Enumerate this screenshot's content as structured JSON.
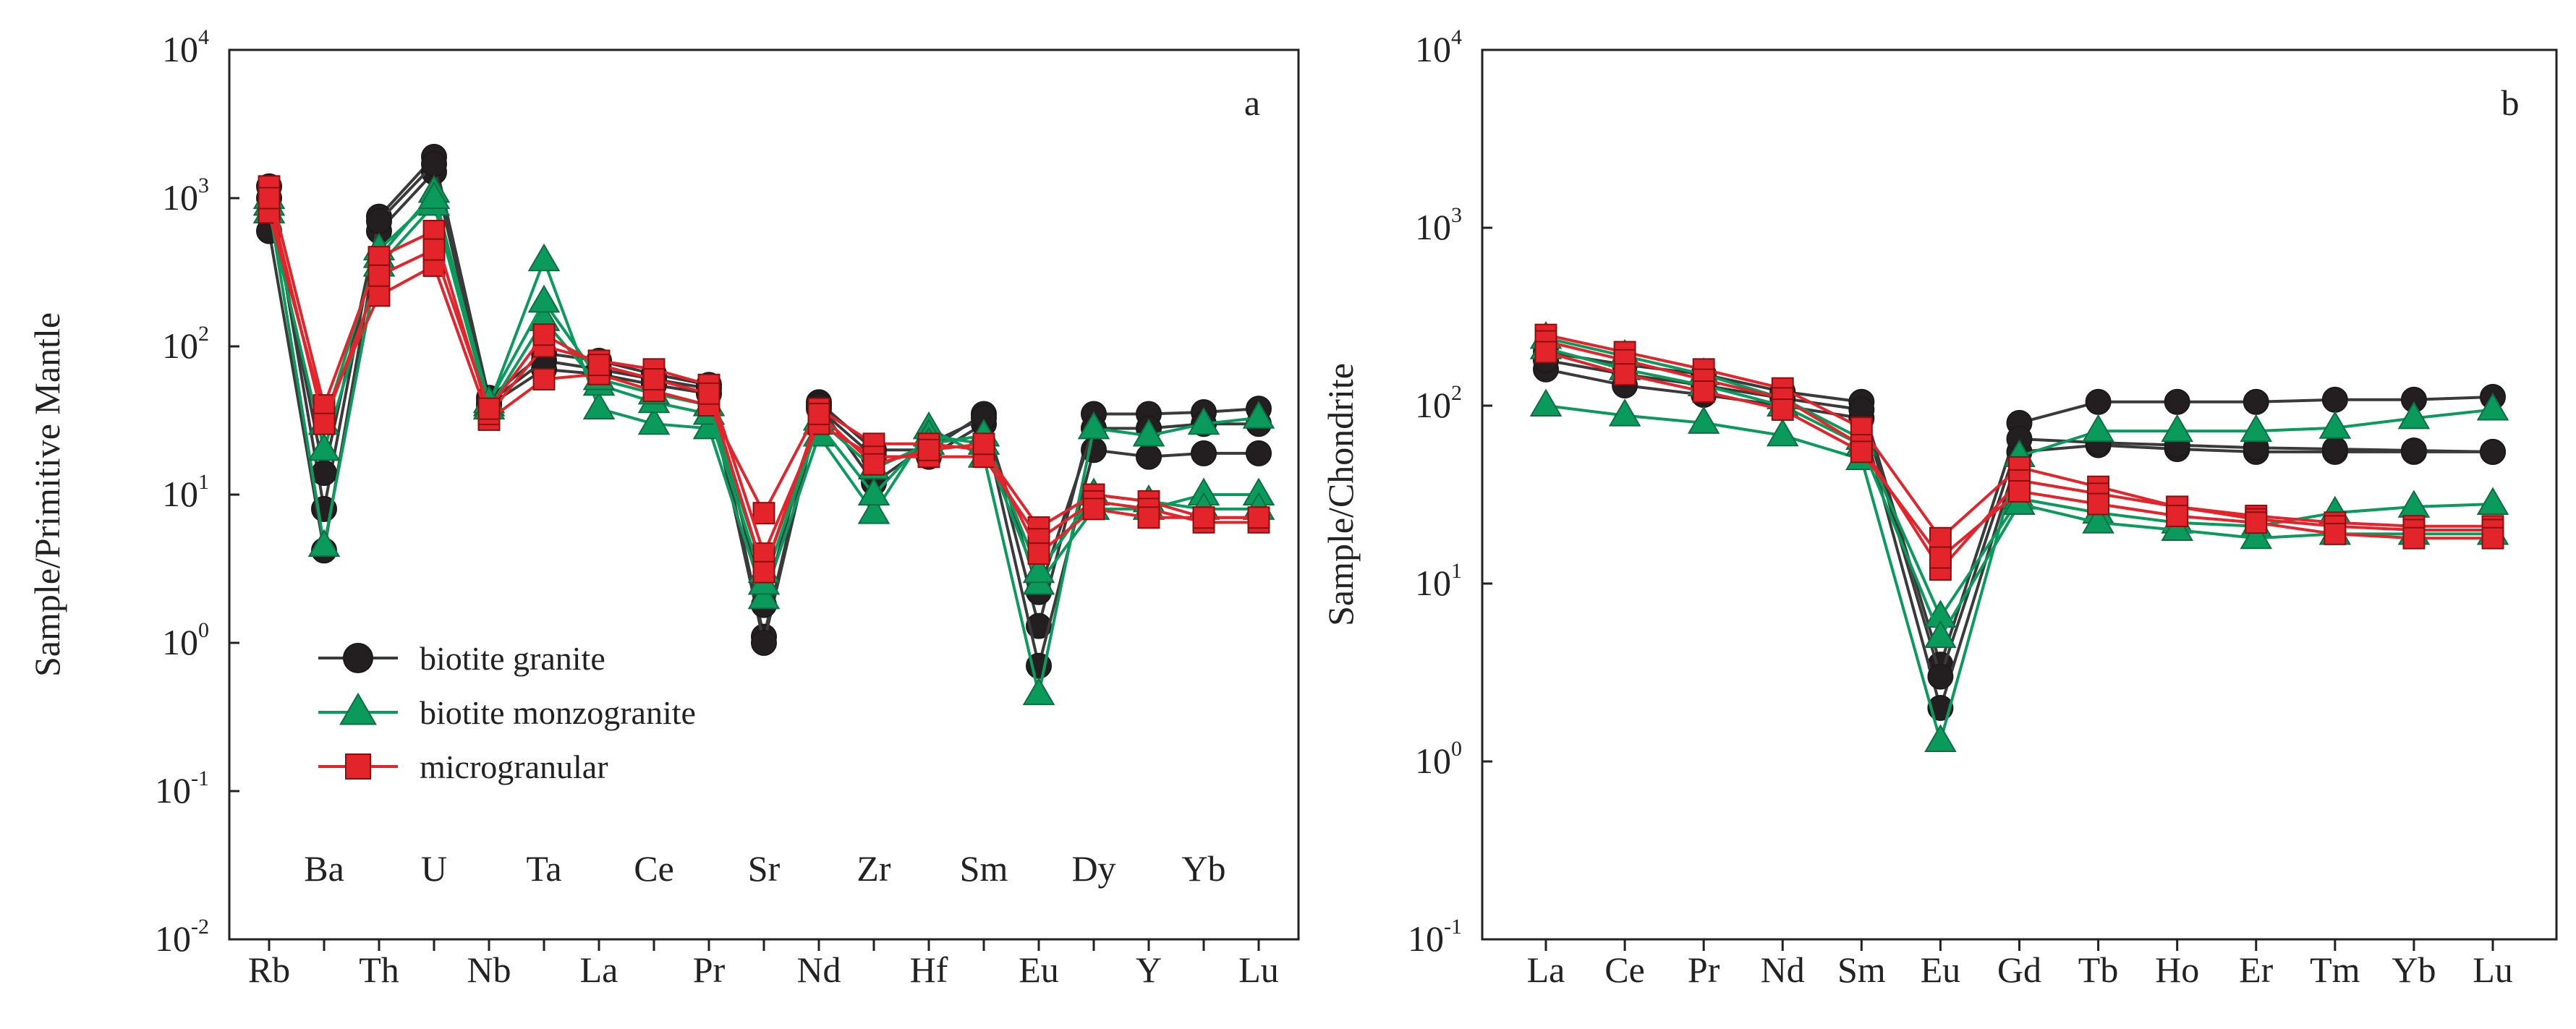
{
  "chart_data": [
    {
      "type": "line",
      "panel_label": "a",
      "ylabel": "Sample/Primitive Mantle",
      "yscale": "log",
      "ylim": [
        0.01,
        10000
      ],
      "y_tick_labels": [
        {
          "base": "10",
          "exp": "-2",
          "value": 0.01
        },
        {
          "base": "10",
          "exp": "-1",
          "value": 0.1
        },
        {
          "base": "10",
          "exp": "0",
          "value": 1
        },
        {
          "base": "10",
          "exp": "1",
          "value": 10
        },
        {
          "base": "10",
          "exp": "2",
          "value": 100
        },
        {
          "base": "10",
          "exp": "3",
          "value": 1000
        },
        {
          "base": "10",
          "exp": "4",
          "value": 10000
        }
      ],
      "categories": [
        "Rb",
        "Ba",
        "Th",
        "U",
        "Nb",
        "Ta",
        "La",
        "Ce",
        "Pr",
        "Sr",
        "Nd",
        "Zr",
        "Hf",
        "Sm",
        "Eu",
        "Dy",
        "Y",
        "Yb",
        "Lu"
      ],
      "category_rows": [
        "bottom",
        "top",
        "bottom",
        "top",
        "bottom",
        "top",
        "bottom",
        "top",
        "bottom",
        "top",
        "bottom",
        "top",
        "bottom",
        "top",
        "bottom",
        "top",
        "bottom",
        "top",
        "bottom"
      ],
      "legend": {
        "position": "lower-left",
        "entries": [
          {
            "label": "biotite granite",
            "marker": "circle",
            "color": "#231f20"
          },
          {
            "label": "biotite monzogranite",
            "marker": "triangle",
            "color": "#0a9a5c"
          },
          {
            "label": "microgranular",
            "marker": "square",
            "color": "#e3242b"
          }
        ]
      },
      "series": [
        {
          "name": "biotite granite",
          "marker": "circle",
          "color": "#231f20",
          "values": [
            1200,
            8,
            750,
            1900,
            45,
            90,
            80,
            65,
            55,
            1.1,
            42,
            20,
            20,
            35,
            1.3,
            35,
            35,
            36,
            38
          ]
        },
        {
          "name": "biotite granite",
          "marker": "circle",
          "color": "#231f20",
          "values": [
            600,
            4.2,
            600,
            1500,
            40,
            70,
            65,
            55,
            48,
            1.0,
            38,
            18,
            18,
            30,
            0.7,
            20,
            18,
            19,
            19
          ]
        },
        {
          "name": "biotite granite",
          "marker": "circle",
          "color": "#231f20",
          "values": [
            1000,
            14,
            700,
            1700,
            42,
            80,
            70,
            60,
            52,
            1.8,
            40,
            12,
            22,
            33,
            2.2,
            28,
            28,
            30,
            30
          ]
        },
        {
          "name": "biotite monzogranite",
          "marker": "triangle",
          "color": "#0a9a5c",
          "values": [
            900,
            4.5,
            400,
            1100,
            40,
            380,
            38,
            30,
            28,
            2.0,
            25,
            7.5,
            28,
            18,
            0.45,
            28,
            25,
            30,
            33
          ]
        },
        {
          "name": "biotite monzogranite",
          "marker": "triangle",
          "color": "#0a9a5c",
          "values": [
            800,
            20,
            350,
            900,
            38,
            150,
            55,
            42,
            35,
            2.5,
            30,
            10,
            25,
            22,
            2.5,
            8,
            8,
            10,
            10
          ]
        },
        {
          "name": "biotite monzogranite",
          "marker": "triangle",
          "color": "#0a9a5c",
          "values": [
            1000,
            30,
            450,
            1000,
            42,
            200,
            60,
            48,
            40,
            3.0,
            32,
            15,
            22,
            25,
            3.0,
            10,
            9,
            8,
            8
          ]
        },
        {
          "name": "microgranular",
          "marker": "square",
          "color": "#e3242b",
          "values": [
            800,
            35,
            220,
            350,
            32,
            60,
            65,
            50,
            40,
            7.5,
            38,
            22,
            22,
            20,
            6.0,
            10,
            9,
            7,
            7
          ]
        },
        {
          "name": "microgranular",
          "marker": "square",
          "color": "#e3242b",
          "values": [
            1200,
            40,
            400,
            600,
            35,
            100,
            80,
            70,
            55,
            4.0,
            30,
            18,
            18,
            18,
            5.0,
            9,
            8,
            6.5,
            6.5
          ]
        },
        {
          "name": "microgranular",
          "marker": "square",
          "color": "#e3242b",
          "values": [
            1000,
            30,
            300,
            450,
            38,
            120,
            75,
            60,
            48,
            3.0,
            35,
            16,
            20,
            22,
            4.0,
            8,
            7,
            7,
            7
          ]
        }
      ]
    },
    {
      "type": "line",
      "panel_label": "b",
      "ylabel": "Sample/Chondrite",
      "yscale": "log",
      "ylim": [
        0.1,
        10000
      ],
      "y_tick_labels": [
        {
          "base": "10",
          "exp": "-1",
          "value": 0.1
        },
        {
          "base": "10",
          "exp": "0",
          "value": 1
        },
        {
          "base": "10",
          "exp": "1",
          "value": 10
        },
        {
          "base": "10",
          "exp": "2",
          "value": 100
        },
        {
          "base": "10",
          "exp": "3",
          "value": 1000
        },
        {
          "base": "10",
          "exp": "4",
          "value": 10000
        }
      ],
      "categories": [
        "La",
        "Ce",
        "Pr",
        "Nd",
        "Sm",
        "Eu",
        "Gd",
        "Tb",
        "Ho",
        "Er",
        "Tm",
        "Yb",
        "Lu"
      ],
      "series": [
        {
          "name": "biotite granite",
          "marker": "circle",
          "color": "#231f20",
          "values": [
            200,
            170,
            150,
            120,
            105,
            3.5,
            80,
            105,
            105,
            105,
            108,
            108,
            112
          ]
        },
        {
          "name": "biotite granite",
          "marker": "circle",
          "color": "#231f20",
          "values": [
            160,
            130,
            115,
            100,
            85,
            2.0,
            55,
            60,
            57,
            55,
            55,
            55,
            55
          ]
        },
        {
          "name": "biotite granite",
          "marker": "circle",
          "color": "#231f20",
          "values": [
            180,
            150,
            130,
            110,
            95,
            3.0,
            65,
            62,
            60,
            58,
            57,
            56,
            55
          ]
        },
        {
          "name": "biotite monzogranite",
          "marker": "triangle",
          "color": "#0a9a5c",
          "values": [
            100,
            88,
            80,
            68,
            50,
            1.3,
            52,
            72,
            72,
            72,
            75,
            85,
            95
          ]
        },
        {
          "name": "biotite monzogranite",
          "marker": "triangle",
          "color": "#0a9a5c",
          "values": [
            240,
            190,
            150,
            110,
            65,
            6.5,
            30,
            25,
            22,
            21,
            25,
            27,
            28
          ]
        },
        {
          "name": "biotite monzogranite",
          "marker": "triangle",
          "color": "#0a9a5c",
          "values": [
            210,
            160,
            130,
            100,
            60,
            5.0,
            28,
            22,
            20,
            18,
            19,
            19,
            19
          ]
        },
        {
          "name": "microgranular",
          "marker": "square",
          "color": "#e3242b",
          "values": [
            250,
            200,
            160,
            125,
            75,
            18,
            45,
            35,
            27,
            24,
            22,
            21,
            21
          ]
        },
        {
          "name": "microgranular",
          "marker": "square",
          "color": "#e3242b",
          "values": [
            230,
            180,
            140,
            110,
            60,
            12,
            38,
            32,
            27,
            23,
            21,
            20,
            20
          ]
        },
        {
          "name": "microgranular",
          "marker": "square",
          "color": "#e3242b",
          "values": [
            200,
            150,
            120,
            95,
            55,
            14,
            33,
            28,
            24,
            22,
            19,
            18,
            18
          ]
        }
      ]
    }
  ]
}
